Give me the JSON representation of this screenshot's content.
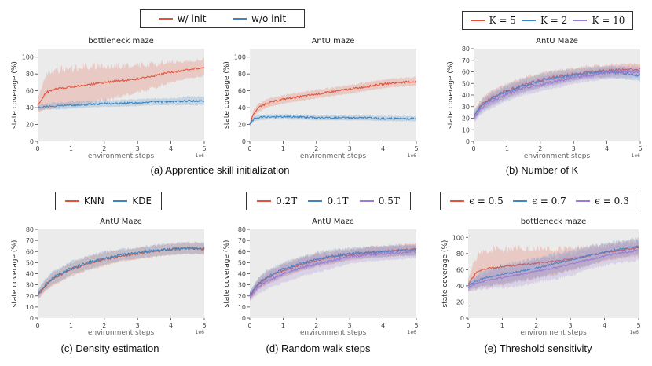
{
  "colors": {
    "red": "#e4523a",
    "blue": "#3d86c2",
    "purple": "#9a7ad6",
    "plot_bg": "#ebebeb"
  },
  "chart_data": [
    {
      "type": "line",
      "id": "a1",
      "title": "bottleneck maze",
      "xlabel": "environment steps",
      "ylabel": "state coverage (%)",
      "xlim": [
        0,
        5
      ],
      "ylim": [
        0,
        110
      ],
      "x_ticks": [
        "0",
        "1",
        "2",
        "3",
        "4",
        "5"
      ],
      "y_ticks": [
        "0",
        "20",
        "40",
        "60",
        "80",
        "100"
      ],
      "x_exponent": "1e6",
      "series": [
        {
          "name": "w/ init",
          "color": "red",
          "x": [
            0,
            0.25,
            0.5,
            1,
            1.5,
            2,
            2.5,
            3,
            3.5,
            4,
            4.5,
            5
          ],
          "y": [
            42,
            58,
            62,
            65,
            67,
            70,
            72,
            74,
            78,
            82,
            85,
            88
          ],
          "band": [
            8,
            20,
            22,
            22,
            22,
            20,
            18,
            16,
            14,
            12,
            10,
            10
          ]
        },
        {
          "name": "w/o init",
          "color": "blue",
          "x": [
            0,
            0.5,
            1,
            1.5,
            2,
            2.5,
            3,
            3.5,
            4,
            4.5,
            5
          ],
          "y": [
            40,
            42,
            43,
            44,
            45,
            45,
            46,
            47,
            47,
            48,
            48
          ],
          "band": [
            3,
            4,
            4,
            4,
            4,
            4,
            4,
            4,
            4,
            5,
            5
          ]
        }
      ]
    },
    {
      "type": "line",
      "id": "a2",
      "title": "AntU maze",
      "xlabel": "environment steps",
      "ylabel": "state coverage (%)",
      "xlim": [
        0,
        5
      ],
      "ylim": [
        0,
        110
      ],
      "x_ticks": [
        "0",
        "1",
        "2",
        "3",
        "4",
        "5"
      ],
      "y_ticks": [
        "0",
        "20",
        "40",
        "60",
        "80",
        "100"
      ],
      "x_exponent": "1e6",
      "series": [
        {
          "name": "w/ init",
          "color": "red",
          "x": [
            0,
            0.1,
            0.25,
            0.5,
            1,
            1.5,
            2,
            2.5,
            3,
            3.5,
            4,
            4.5,
            5
          ],
          "y": [
            20,
            32,
            40,
            45,
            50,
            53,
            56,
            59,
            62,
            65,
            68,
            70,
            71
          ],
          "band": [
            2,
            4,
            5,
            5,
            5,
            5,
            5,
            5,
            5,
            5,
            5,
            5,
            5
          ]
        },
        {
          "name": "w/o init",
          "color": "blue",
          "x": [
            0,
            0.1,
            0.25,
            0.5,
            1,
            1.5,
            2,
            2.5,
            3,
            3.5,
            4,
            4.5,
            5
          ],
          "y": [
            20,
            26,
            28,
            29,
            29,
            29,
            28,
            28,
            28,
            28,
            27,
            27,
            27
          ],
          "band": [
            2,
            3,
            3,
            3,
            3,
            3,
            3,
            3,
            3,
            3,
            3,
            3,
            3
          ]
        }
      ]
    },
    {
      "type": "line",
      "id": "b",
      "title": "AntU Maze",
      "xlabel": "environment steps",
      "ylabel": "state coverage (%)",
      "xlim": [
        0,
        5
      ],
      "ylim": [
        0,
        80
      ],
      "x_ticks": [
        "0",
        "1",
        "2",
        "3",
        "4",
        "5"
      ],
      "y_ticks": [
        "0",
        "10",
        "20",
        "30",
        "40",
        "50",
        "60",
        "70",
        "80"
      ],
      "x_exponent": "1e6",
      "series": [
        {
          "name": "K = 5",
          "color": "red",
          "x": [
            0,
            0.25,
            0.5,
            1,
            1.5,
            2,
            2.5,
            3,
            3.5,
            4,
            4.5,
            5
          ],
          "y": [
            22,
            32,
            37,
            44,
            49,
            53,
            56,
            58,
            60,
            61,
            62,
            62
          ],
          "band": [
            4,
            5,
            6,
            6,
            6,
            6,
            6,
            5,
            5,
            5,
            5,
            5
          ]
        },
        {
          "name": "K = 2",
          "color": "blue",
          "x": [
            0,
            0.25,
            0.5,
            1,
            1.5,
            2,
            2.5,
            3,
            3.5,
            4,
            4.5,
            5
          ],
          "y": [
            22,
            31,
            36,
            43,
            48,
            52,
            55,
            57,
            59,
            60,
            59,
            57
          ],
          "band": [
            4,
            5,
            6,
            6,
            6,
            6,
            6,
            5,
            5,
            5,
            5,
            5
          ]
        },
        {
          "name": "K = 10",
          "color": "purple",
          "x": [
            0,
            0.25,
            0.5,
            1,
            1.5,
            2,
            2.5,
            3,
            3.5,
            4,
            4.5,
            5
          ],
          "y": [
            20,
            29,
            34,
            41,
            46,
            49,
            52,
            55,
            57,
            59,
            60,
            60
          ],
          "band": [
            4,
            5,
            6,
            6,
            6,
            6,
            6,
            5,
            5,
            5,
            5,
            5
          ]
        }
      ]
    },
    {
      "type": "line",
      "id": "c",
      "title": "AntU Maze",
      "xlabel": "environment steps",
      "ylabel": "state coverage (%)",
      "xlim": [
        0,
        5
      ],
      "ylim": [
        0,
        80
      ],
      "x_ticks": [
        "0",
        "1",
        "2",
        "3",
        "4",
        "5"
      ],
      "y_ticks": [
        "0",
        "10",
        "20",
        "30",
        "40",
        "50",
        "60",
        "70",
        "80"
      ],
      "x_exponent": "1e6",
      "series": [
        {
          "name": "KNN",
          "color": "red",
          "x": [
            0,
            0.25,
            0.5,
            1,
            1.5,
            2,
            2.5,
            3,
            3.5,
            4,
            4.5,
            5
          ],
          "y": [
            20,
            30,
            36,
            44,
            49,
            53,
            56,
            58,
            60,
            62,
            63,
            62
          ],
          "band": [
            4,
            5,
            6,
            6,
            6,
            6,
            5,
            5,
            5,
            5,
            5,
            5
          ]
        },
        {
          "name": "KDE",
          "color": "blue",
          "x": [
            0,
            0.25,
            0.5,
            1,
            1.5,
            2,
            2.5,
            3,
            3.5,
            4,
            4.5,
            5
          ],
          "y": [
            21,
            31,
            37,
            45,
            50,
            54,
            57,
            59,
            61,
            62,
            63,
            63
          ],
          "band": [
            4,
            5,
            6,
            6,
            6,
            6,
            5,
            5,
            5,
            5,
            5,
            5
          ]
        }
      ]
    },
    {
      "type": "line",
      "id": "d",
      "title": "AntU Maze",
      "xlabel": "environment steps",
      "ylabel": "state coverage (%)",
      "xlim": [
        0,
        5
      ],
      "ylim": [
        0,
        80
      ],
      "x_ticks": [
        "0",
        "1",
        "2",
        "3",
        "4",
        "5"
      ],
      "y_ticks": [
        "0",
        "10",
        "20",
        "30",
        "40",
        "50",
        "60",
        "70",
        "80"
      ],
      "x_exponent": "1e6",
      "series": [
        {
          "name": "0.2T",
          "color": "red",
          "x": [
            0,
            0.25,
            0.5,
            1,
            1.5,
            2,
            2.5,
            3,
            3.5,
            4,
            4.5,
            5
          ],
          "y": [
            20,
            30,
            36,
            43,
            48,
            52,
            55,
            57,
            59,
            60,
            61,
            62
          ],
          "band": [
            4,
            5,
            6,
            6,
            6,
            6,
            6,
            5,
            5,
            5,
            5,
            5
          ]
        },
        {
          "name": "0.1T",
          "color": "blue",
          "x": [
            0,
            0.25,
            0.5,
            1,
            1.5,
            2,
            2.5,
            3,
            3.5,
            4,
            4.5,
            5
          ],
          "y": [
            21,
            31,
            37,
            44,
            49,
            53,
            56,
            58,
            59,
            60,
            61,
            61
          ],
          "band": [
            4,
            5,
            6,
            6,
            6,
            6,
            6,
            5,
            5,
            5,
            5,
            5
          ]
        },
        {
          "name": "0.5T",
          "color": "purple",
          "x": [
            0,
            0.25,
            0.5,
            1,
            1.5,
            2,
            2.5,
            3,
            3.5,
            4,
            4.5,
            5
          ],
          "y": [
            19,
            28,
            33,
            40,
            45,
            49,
            52,
            55,
            57,
            58,
            59,
            60
          ],
          "band": [
            4,
            6,
            7,
            8,
            8,
            8,
            7,
            6,
            6,
            6,
            6,
            6
          ]
        }
      ]
    },
    {
      "type": "line",
      "id": "e",
      "title": "bottleneck maze",
      "xlabel": "environment steps",
      "ylabel": "state coverage (%)",
      "xlim": [
        0,
        5
      ],
      "ylim": [
        0,
        110
      ],
      "x_ticks": [
        "0",
        "1",
        "2",
        "3",
        "4",
        "5"
      ],
      "y_ticks": [
        "0",
        "20",
        "40",
        "60",
        "80",
        "100"
      ],
      "x_exponent": "1e6",
      "series": [
        {
          "name": "ε = 0.5",
          "color": "red",
          "x": [
            0,
            0.25,
            0.5,
            1,
            1.5,
            2,
            2.5,
            3,
            3.5,
            4,
            4.5,
            5
          ],
          "y": [
            42,
            57,
            61,
            64,
            66,
            68,
            70,
            73,
            77,
            81,
            84,
            87
          ],
          "band": [
            8,
            20,
            22,
            22,
            20,
            18,
            16,
            14,
            12,
            10,
            10,
            10
          ]
        },
        {
          "name": "ε = 0.7",
          "color": "blue",
          "x": [
            0,
            0.25,
            0.5,
            1,
            1.5,
            2,
            2.5,
            3,
            3.5,
            4,
            4.5,
            5
          ],
          "y": [
            40,
            46,
            50,
            54,
            58,
            62,
            67,
            72,
            77,
            82,
            86,
            89
          ],
          "band": [
            5,
            8,
            10,
            12,
            12,
            12,
            12,
            12,
            12,
            10,
            10,
            10
          ]
        },
        {
          "name": "ε = 0.3",
          "color": "purple",
          "x": [
            0,
            0.25,
            0.5,
            1,
            1.5,
            2,
            2.5,
            3,
            3.5,
            4,
            4.5,
            5
          ],
          "y": [
            38,
            43,
            46,
            50,
            54,
            58,
            62,
            67,
            72,
            77,
            81,
            84
          ],
          "band": [
            5,
            8,
            10,
            12,
            14,
            14,
            14,
            14,
            12,
            12,
            12,
            12
          ]
        }
      ]
    }
  ],
  "legends": {
    "a": [
      {
        "label": "w/ init",
        "color": "red"
      },
      {
        "label": "w/o init",
        "color": "blue"
      }
    ],
    "b": [
      {
        "label": "K = 5",
        "color": "red"
      },
      {
        "label": "K = 2",
        "color": "blue"
      },
      {
        "label": "K = 10",
        "color": "purple"
      }
    ],
    "c": [
      {
        "label": "KNN",
        "color": "red"
      },
      {
        "label": "KDE",
        "color": "blue"
      }
    ],
    "d": [
      {
        "label": "0.2T",
        "color": "red"
      },
      {
        "label": "0.1T",
        "color": "blue"
      },
      {
        "label": "0.5T",
        "color": "purple"
      }
    ],
    "e": [
      {
        "label": "ϵ = 0.5",
        "color": "red"
      },
      {
        "label": "ϵ = 0.7",
        "color": "blue"
      },
      {
        "label": "ϵ = 0.3",
        "color": "purple"
      }
    ]
  },
  "captions": {
    "a": "(a) Apprentice skill initialization",
    "b": "(b) Number of K",
    "c": "(c) Density estimation",
    "d": "(d) Random walk steps",
    "e": "(e) Threshold sensitivity"
  }
}
